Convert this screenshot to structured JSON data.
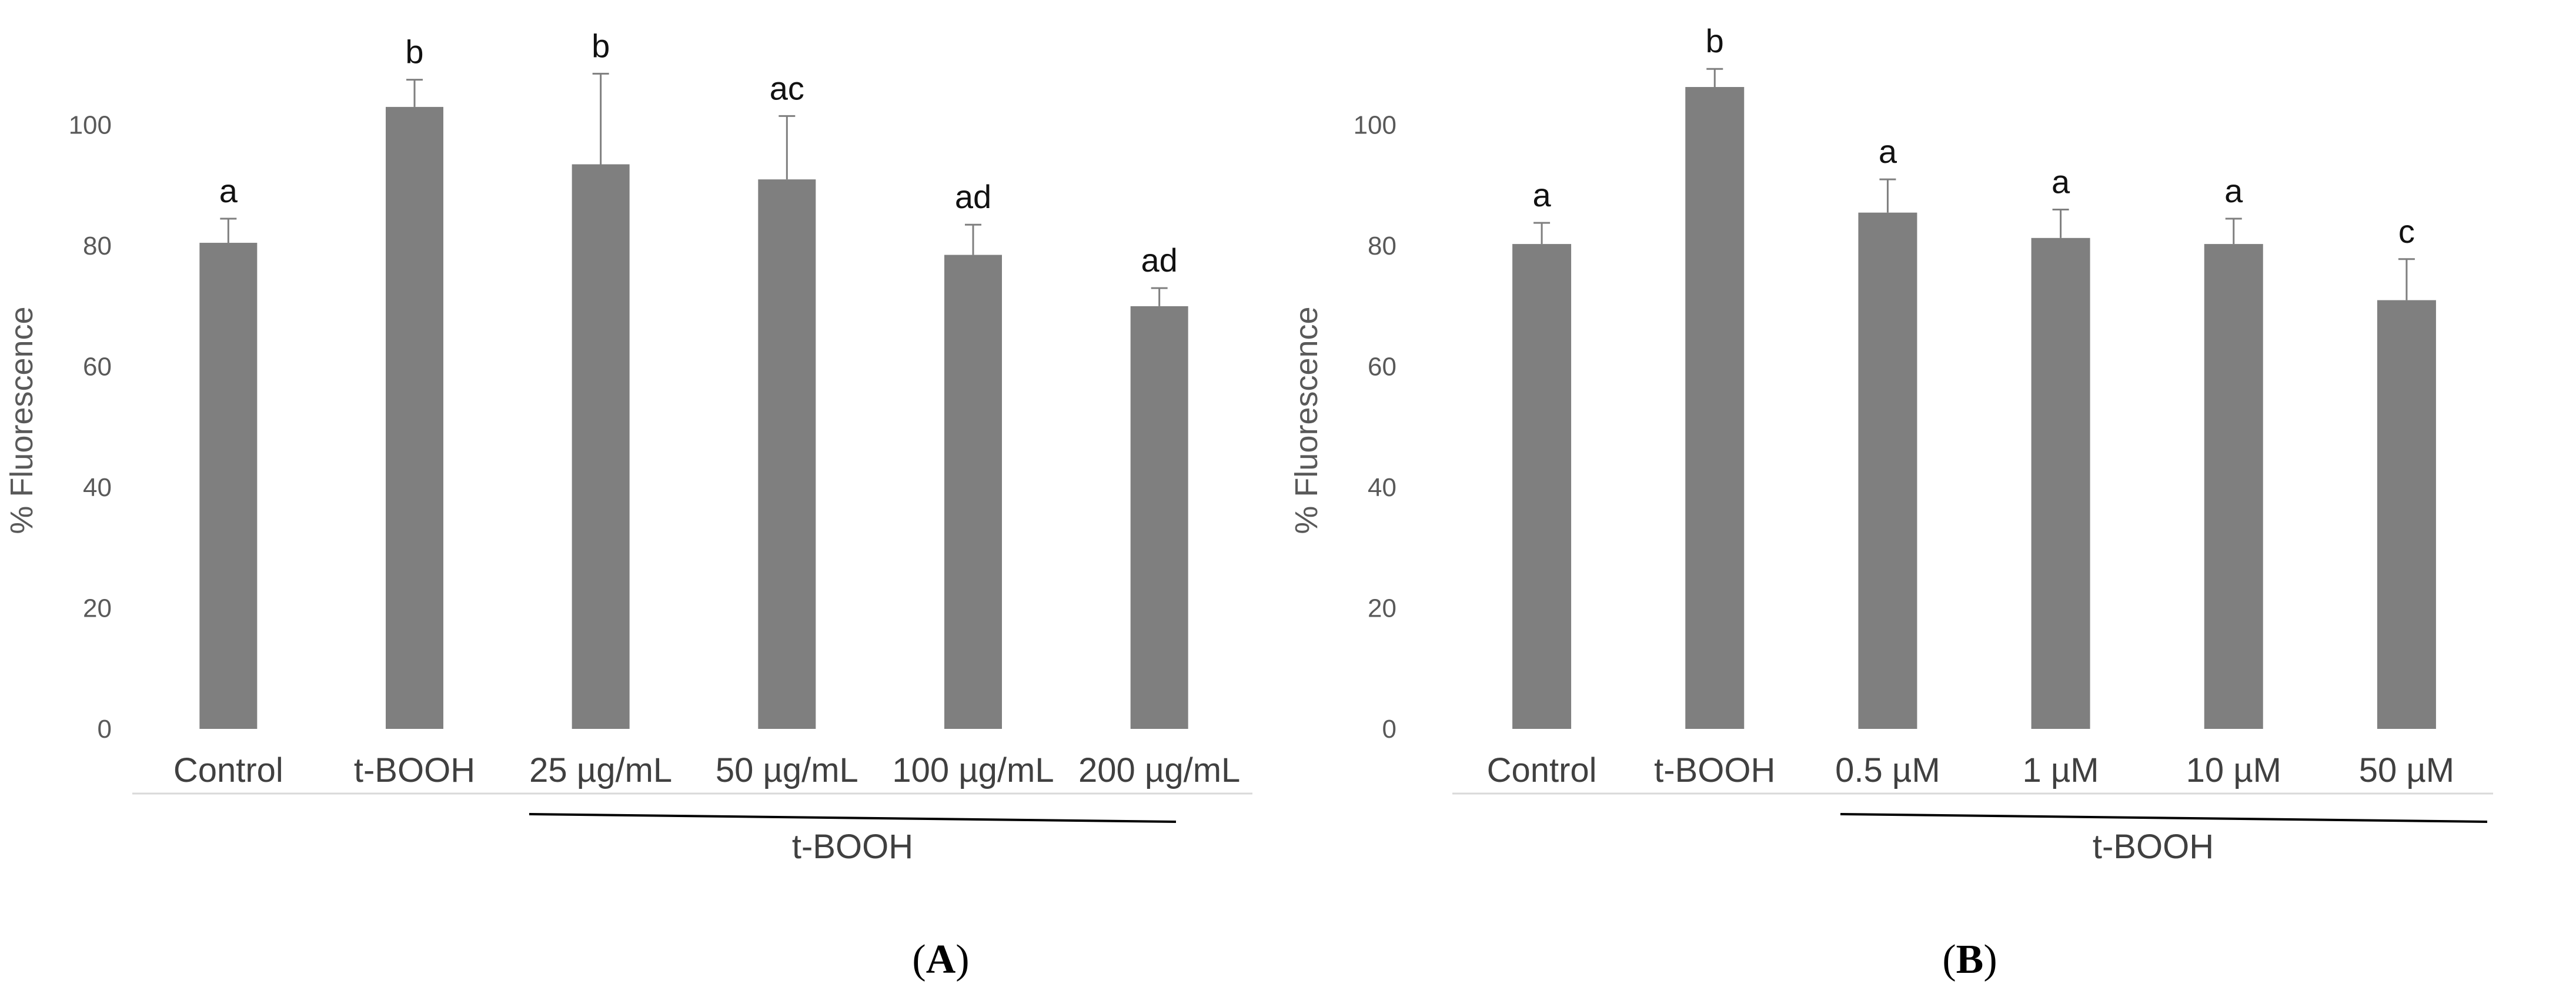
{
  "chart_data": [
    {
      "type": "bar",
      "panel_label": "(A)",
      "panel_letter": "A",
      "ylabel": "% Fluorescence",
      "ylim": [
        0,
        110
      ],
      "yticks": [
        "0",
        "20",
        "40",
        "60",
        "80",
        "100"
      ],
      "ytick_values": [
        0,
        20,
        40,
        60,
        80,
        100
      ],
      "categories": [
        "Control",
        "t-BOOH",
        "25 µg/mL",
        "50 µg/mL",
        "100 µg/mL",
        "200 µg/mL"
      ],
      "values": [
        80.5,
        103,
        93.5,
        91,
        78.5,
        70
      ],
      "errors": [
        4,
        4.5,
        15,
        10.5,
        5,
        3
      ],
      "significance": [
        "a",
        "b",
        "b",
        "ac",
        "ad",
        "ad"
      ],
      "group_label": "t-BOOH",
      "group_start_index": 2,
      "bar_color": "#7f7f7f",
      "grid": false
    },
    {
      "type": "bar",
      "panel_label": "(B)",
      "panel_letter": "B",
      "ylabel": "% Fluorescence",
      "ylim": [
        0,
        110
      ],
      "yticks": [
        "0",
        "20",
        "40",
        "60",
        "80",
        "100"
      ],
      "ytick_values": [
        0,
        20,
        40,
        60,
        80,
        100
      ],
      "categories": [
        "Control",
        "t-BOOH",
        "0.5 µM",
        "1 µM",
        "10 µM",
        "50 µM"
      ],
      "values": [
        80.3,
        106.3,
        85.5,
        81.3,
        80.3,
        71
      ],
      "errors": [
        3.5,
        3,
        5.5,
        4.7,
        4.2,
        6.8
      ],
      "significance": [
        "a",
        "b",
        "a",
        "a",
        "a",
        "c"
      ],
      "group_label": "t-BOOH",
      "group_start_index": 2,
      "bar_color": "#7f7f7f",
      "grid": false
    }
  ]
}
